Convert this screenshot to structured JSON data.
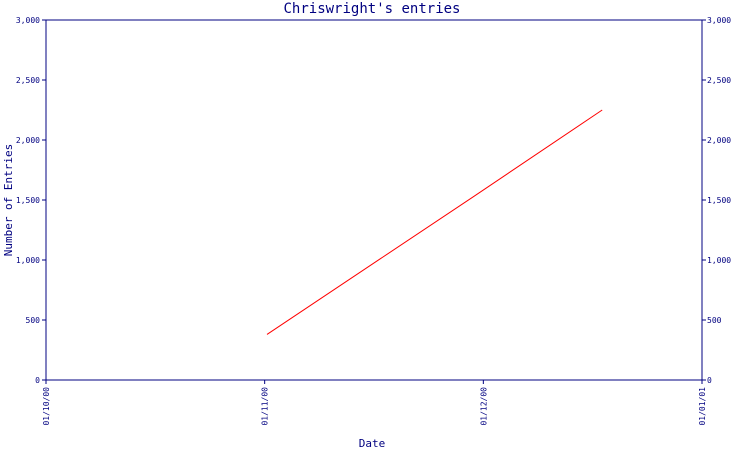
{
  "chart_data": {
    "type": "line",
    "title": "Chriswright's entries",
    "xlabel": "Date",
    "ylabel": "Number of Entries",
    "x_ticks": [
      "01/10/00",
      "01/11/00",
      "01/12/00",
      "01/01/01"
    ],
    "y_ticks": [
      "0",
      "500",
      "1,000",
      "1,500",
      "2,000",
      "2,500",
      "3,000"
    ],
    "y_tick_values": [
      0,
      500,
      1000,
      1500,
      2000,
      2500,
      3000
    ],
    "ylim": [
      0,
      3000
    ],
    "xlim": [
      "2000-10-01",
      "2001-01-01"
    ],
    "grid": false,
    "series": [
      {
        "color": "#ff0000",
        "x": [
          "2000-11-01",
          "2000-11-30",
          "2000-12-18"
        ],
        "y": [
          380,
          1530,
          2250
        ]
      }
    ]
  }
}
